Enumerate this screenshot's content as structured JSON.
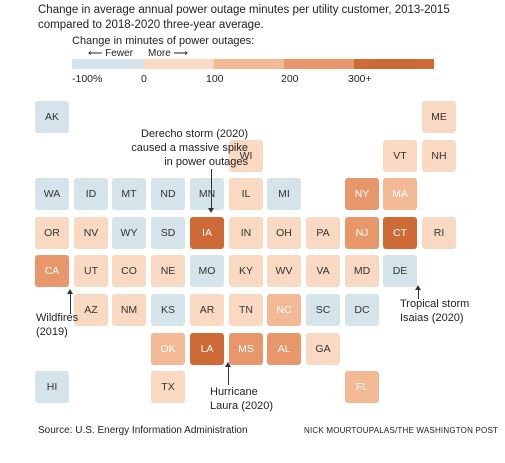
{
  "header": {
    "subtitle": "Change in average annual power outage minutes per utility customer, 2013-2015 compared to 2018-2020 three-year average."
  },
  "legend": {
    "title": "Change in minutes of power outages:",
    "fewer_label": "⟵ Fewer",
    "more_label": "More ⟶",
    "ticks": [
      "-100%",
      "0",
      "100",
      "200",
      "300+"
    ],
    "colors": [
      "#d5e4ea",
      "#f9d9c2",
      "#f3b994",
      "#e7976a",
      "#cd6a36"
    ]
  },
  "chart_data": {
    "type": "heatmap",
    "title": "",
    "states": [
      {
        "abbr": "AK",
        "bin": 0,
        "col": 0,
        "row": 0
      },
      {
        "abbr": "ME",
        "bin": 1,
        "col": 10,
        "row": 0
      },
      {
        "abbr": "WI",
        "bin": 1,
        "col": 5,
        "row": 1
      },
      {
        "abbr": "VT",
        "bin": 1,
        "col": 9,
        "row": 1
      },
      {
        "abbr": "NH",
        "bin": 1,
        "col": 10,
        "row": 1
      },
      {
        "abbr": "WA",
        "bin": 0,
        "col": 0,
        "row": 2
      },
      {
        "abbr": "ID",
        "bin": 0,
        "col": 1,
        "row": 2
      },
      {
        "abbr": "MT",
        "bin": 0,
        "col": 2,
        "row": 2
      },
      {
        "abbr": "ND",
        "bin": 0,
        "col": 3,
        "row": 2
      },
      {
        "abbr": "MN",
        "bin": 0,
        "col": 4,
        "row": 2
      },
      {
        "abbr": "IL",
        "bin": 1,
        "col": 5,
        "row": 2
      },
      {
        "abbr": "MI",
        "bin": 0,
        "col": 6,
        "row": 2
      },
      {
        "abbr": "NY",
        "bin": 3,
        "col": 8,
        "row": 2
      },
      {
        "abbr": "MA",
        "bin": 2,
        "col": 9,
        "row": 2
      },
      {
        "abbr": "OR",
        "bin": 1,
        "col": 0,
        "row": 3
      },
      {
        "abbr": "NV",
        "bin": 1,
        "col": 1,
        "row": 3
      },
      {
        "abbr": "WY",
        "bin": 0,
        "col": 2,
        "row": 3
      },
      {
        "abbr": "SD",
        "bin": 0,
        "col": 3,
        "row": 3
      },
      {
        "abbr": "IA",
        "bin": 4,
        "col": 4,
        "row": 3
      },
      {
        "abbr": "IN",
        "bin": 1,
        "col": 5,
        "row": 3
      },
      {
        "abbr": "OH",
        "bin": 1,
        "col": 6,
        "row": 3
      },
      {
        "abbr": "PA",
        "bin": 1,
        "col": 7,
        "row": 3
      },
      {
        "abbr": "NJ",
        "bin": 3,
        "col": 8,
        "row": 3
      },
      {
        "abbr": "CT",
        "bin": 4,
        "col": 9,
        "row": 3
      },
      {
        "abbr": "RI",
        "bin": 1,
        "col": 10,
        "row": 3
      },
      {
        "abbr": "CA",
        "bin": 3,
        "col": 0,
        "row": 4
      },
      {
        "abbr": "UT",
        "bin": 1,
        "col": 1,
        "row": 4
      },
      {
        "abbr": "CO",
        "bin": 1,
        "col": 2,
        "row": 4
      },
      {
        "abbr": "NE",
        "bin": 1,
        "col": 3,
        "row": 4
      },
      {
        "abbr": "MO",
        "bin": 0,
        "col": 4,
        "row": 4
      },
      {
        "abbr": "KY",
        "bin": 1,
        "col": 5,
        "row": 4
      },
      {
        "abbr": "WV",
        "bin": 1,
        "col": 6,
        "row": 4
      },
      {
        "abbr": "VA",
        "bin": 1,
        "col": 7,
        "row": 4
      },
      {
        "abbr": "MD",
        "bin": 1,
        "col": 8,
        "row": 4
      },
      {
        "abbr": "DE",
        "bin": 0,
        "col": 9,
        "row": 4
      },
      {
        "abbr": "AZ",
        "bin": 1,
        "col": 1,
        "row": 5
      },
      {
        "abbr": "NM",
        "bin": 1,
        "col": 2,
        "row": 5
      },
      {
        "abbr": "KS",
        "bin": 0,
        "col": 3,
        "row": 5
      },
      {
        "abbr": "AR",
        "bin": 1,
        "col": 4,
        "row": 5
      },
      {
        "abbr": "TN",
        "bin": 1,
        "col": 5,
        "row": 5
      },
      {
        "abbr": "NC",
        "bin": 2,
        "col": 6,
        "row": 5
      },
      {
        "abbr": "SC",
        "bin": 0,
        "col": 7,
        "row": 5
      },
      {
        "abbr": "DC",
        "bin": 0,
        "col": 8,
        "row": 5
      },
      {
        "abbr": "OK",
        "bin": 2,
        "col": 3,
        "row": 6
      },
      {
        "abbr": "LA",
        "bin": 4,
        "col": 4,
        "row": 6
      },
      {
        "abbr": "MS",
        "bin": 3,
        "col": 5,
        "row": 6
      },
      {
        "abbr": "AL",
        "bin": 3,
        "col": 6,
        "row": 6
      },
      {
        "abbr": "GA",
        "bin": 1,
        "col": 7,
        "row": 6
      },
      {
        "abbr": "HI",
        "bin": 0,
        "col": 0,
        "row": 7
      },
      {
        "abbr": "TX",
        "bin": 1,
        "col": 3,
        "row": 7
      },
      {
        "abbr": "FL",
        "bin": 2,
        "col": 8,
        "row": 7
      }
    ]
  },
  "annotations": {
    "derecho": "Derecho storm (2020) caused a massive spike in power outages",
    "wildfires": "Wildfires (2019)",
    "isaias": "Tropical storm Isaias (2020)",
    "laura": "Hurricane Laura (2020)"
  },
  "footer": {
    "source": "Source: U.S. Energy Information Administration",
    "credit": "NICK MOURTOUPALAS/THE WASHINGTON POST"
  }
}
